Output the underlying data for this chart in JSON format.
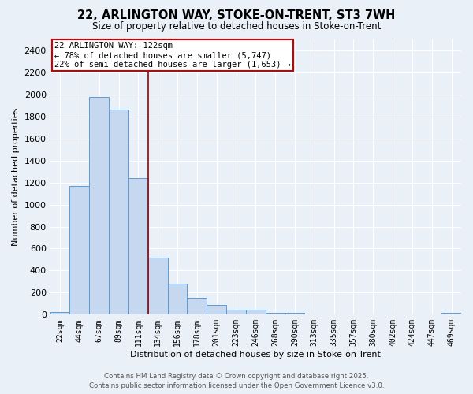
{
  "title": "22, ARLINGTON WAY, STOKE-ON-TRENT, ST3 7WH",
  "subtitle": "Size of property relative to detached houses in Stoke-on-Trent",
  "xlabel": "Distribution of detached houses by size in Stoke-on-Trent",
  "ylabel": "Number of detached properties",
  "bin_labels": [
    "22sqm",
    "44sqm",
    "67sqm",
    "89sqm",
    "111sqm",
    "134sqm",
    "156sqm",
    "178sqm",
    "201sqm",
    "223sqm",
    "246sqm",
    "268sqm",
    "290sqm",
    "313sqm",
    "335sqm",
    "357sqm",
    "380sqm",
    "402sqm",
    "424sqm",
    "447sqm",
    "469sqm"
  ],
  "bar_values": [
    25,
    1170,
    1980,
    1860,
    1240,
    520,
    280,
    150,
    90,
    45,
    45,
    20,
    15,
    5,
    3,
    2,
    2,
    2,
    0,
    0,
    15
  ],
  "bar_color": "#c5d8f0",
  "bar_edge_color": "#5b9bd5",
  "annotation_line1": "22 ARLINGTON WAY: 122sqm",
  "annotation_line2": "← 78% of detached houses are smaller (5,747)",
  "annotation_line3": "22% of semi-detached houses are larger (1,653) →",
  "annotation_box_color": "#ffffff",
  "annotation_box_edge": "#cc0000",
  "vline_color": "#990000",
  "vline_x": 4.5,
  "ylim": [
    0,
    2500
  ],
  "yticks": [
    0,
    200,
    400,
    600,
    800,
    1000,
    1200,
    1400,
    1600,
    1800,
    2000,
    2200,
    2400
  ],
  "bg_color": "#eaf0f8",
  "grid_color": "#ffffff",
  "footer_line1": "Contains HM Land Registry data © Crown copyright and database right 2025.",
  "footer_line2": "Contains public sector information licensed under the Open Government Licence v3.0."
}
